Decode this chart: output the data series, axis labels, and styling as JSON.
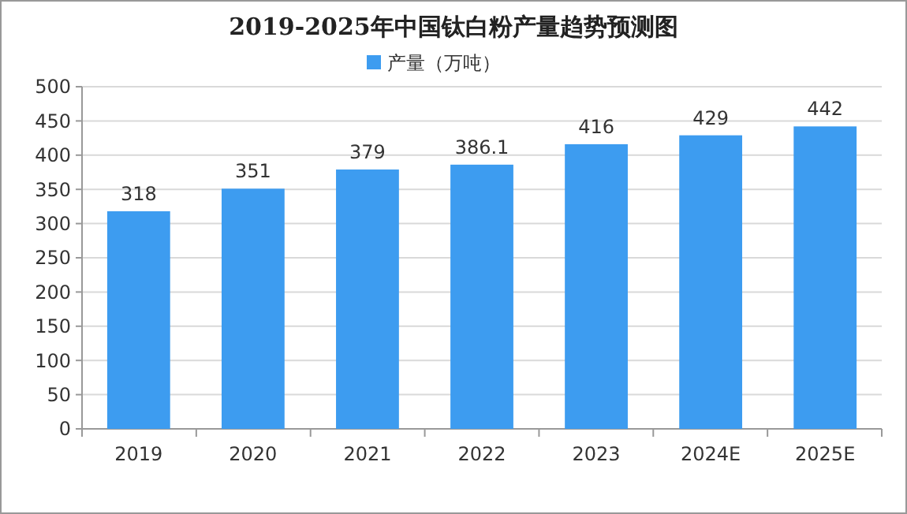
{
  "chart_data": {
    "type": "bar",
    "title": "2019-2025年中国钛白粉产量趋势预测图",
    "categories": [
      "2019",
      "2020",
      "2021",
      "2022",
      "2023",
      "2024E",
      "2025E"
    ],
    "series": [
      {
        "name": "产量（万吨）",
        "color": "#3d9cf0",
        "values": [
          318,
          351,
          379,
          386.1,
          416,
          429,
          442
        ]
      }
    ],
    "ylim": [
      0,
      500
    ],
    "yticks": [
      0,
      50,
      100,
      150,
      200,
      250,
      300,
      350,
      400,
      450,
      500
    ],
    "grid": "y",
    "legend": "top",
    "data_labels": true
  }
}
